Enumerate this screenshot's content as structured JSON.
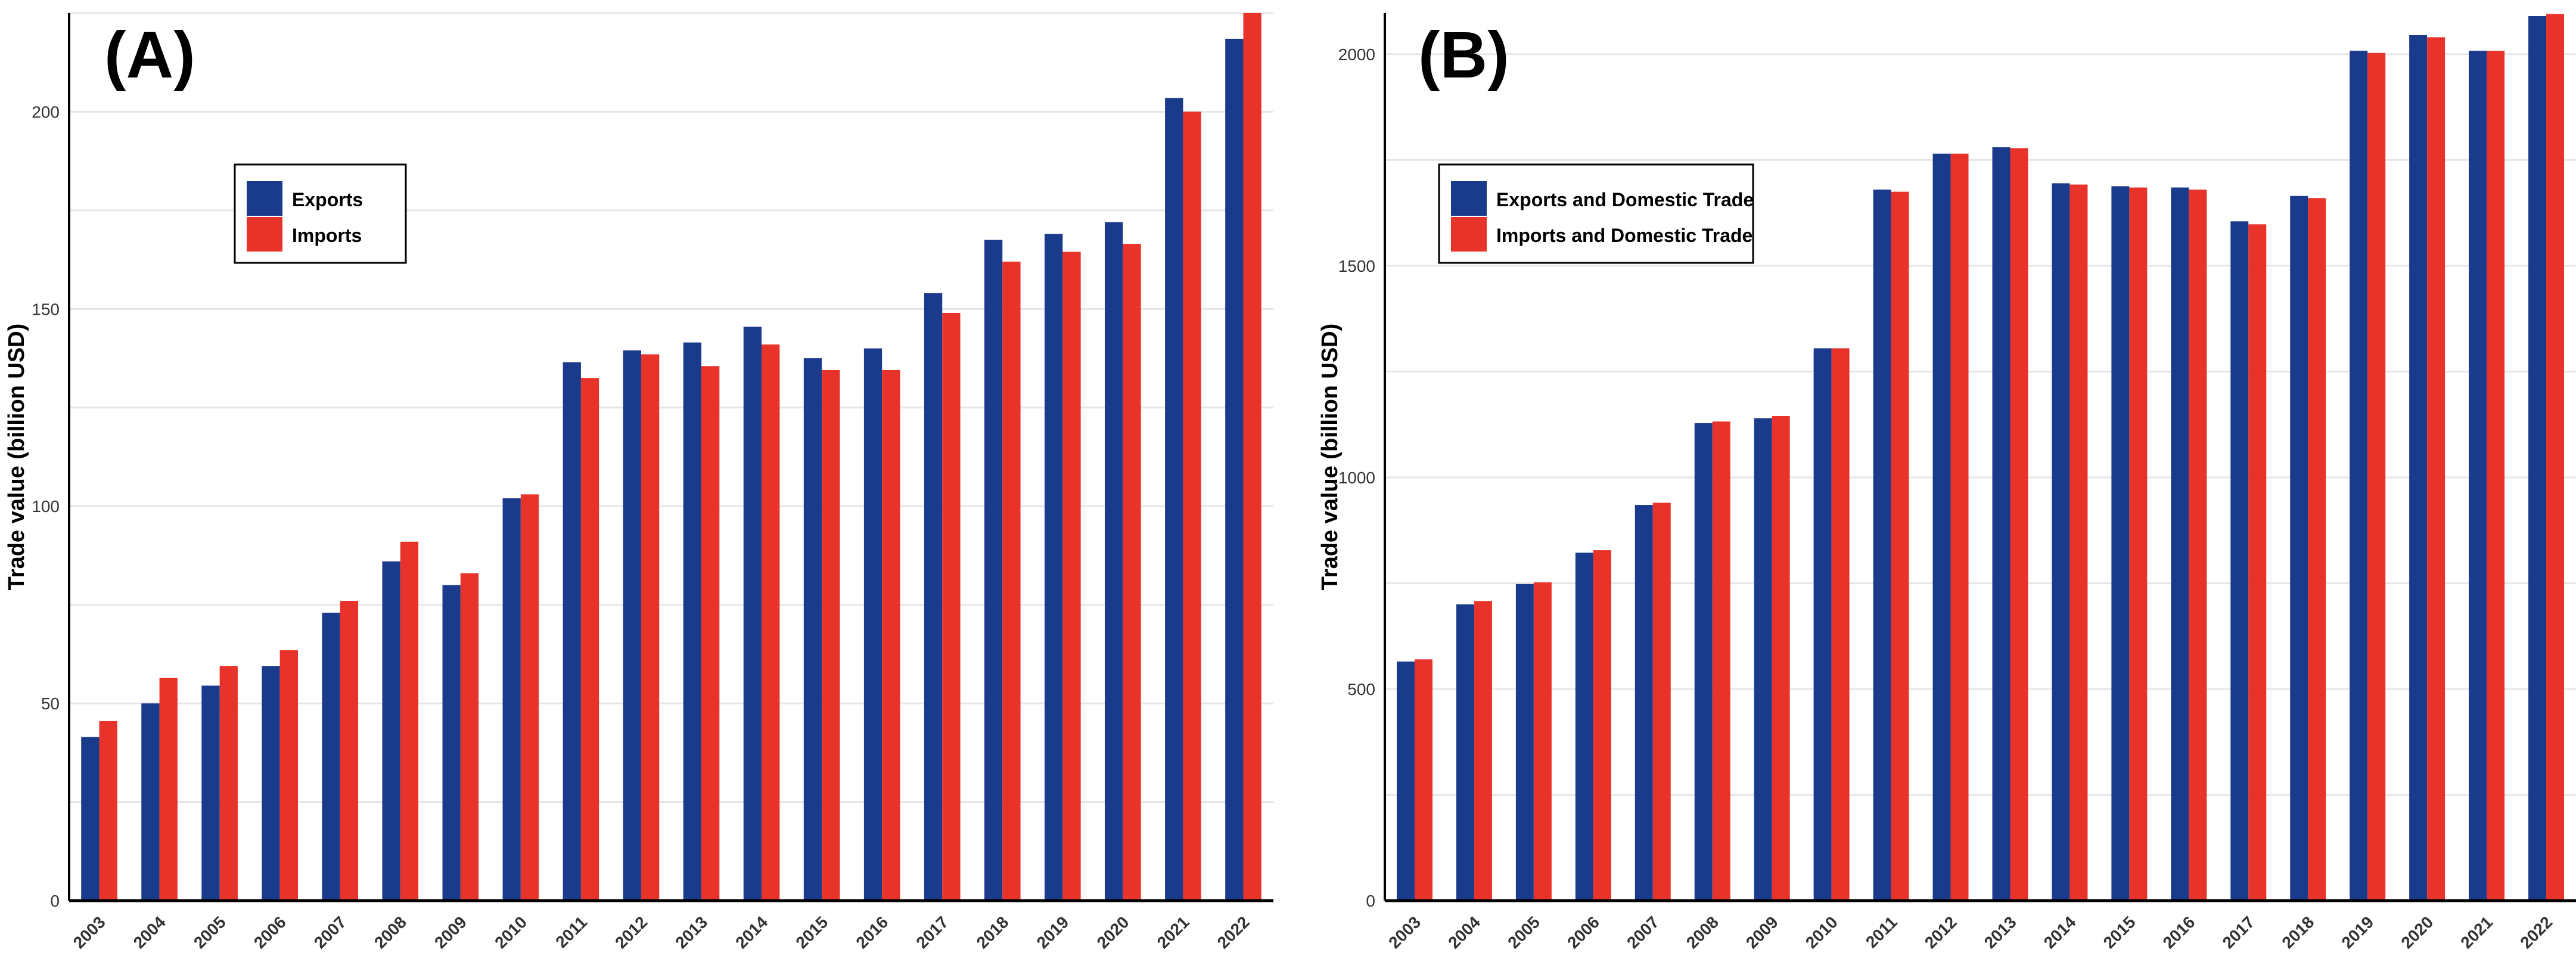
{
  "chart_data": [
    {
      "type": "bar",
      "panel_label": "(A)",
      "ylabel": "Trade value (billion USD)",
      "xlabel": "",
      "categories": [
        "2003",
        "2004",
        "2005",
        "2006",
        "2007",
        "2008",
        "2009",
        "2010",
        "2011",
        "2012",
        "2013",
        "2014",
        "2015",
        "2016",
        "2017",
        "2018",
        "2019",
        "2020",
        "2021",
        "2022"
      ],
      "series": [
        {
          "name": "Exports",
          "color": "#1a3a8c",
          "values": [
            41.5,
            50,
            54.5,
            59.5,
            73,
            86,
            80,
            102,
            136.5,
            139.5,
            141.5,
            145.5,
            137.5,
            140,
            154,
            167.5,
            169,
            172,
            203.5,
            218.5
          ]
        },
        {
          "name": "Imports",
          "color": "#e8332a",
          "values": [
            45.5,
            56.5,
            59.5,
            63.5,
            76,
            91,
            83,
            103,
            132.5,
            138.5,
            135.5,
            141,
            134.5,
            134.5,
            149,
            162,
            164.5,
            166.5,
            200,
            226
          ]
        }
      ],
      "yticks": [
        0,
        50,
        100,
        150,
        200
      ],
      "ylim": [
        0,
        225
      ],
      "grid": true,
      "legend_position": "upper-left"
    },
    {
      "type": "bar",
      "panel_label": "(B)",
      "ylabel": "Trade value (billion USD)",
      "xlabel": "",
      "categories": [
        "2003",
        "2004",
        "2005",
        "2006",
        "2007",
        "2008",
        "2009",
        "2010",
        "2011",
        "2012",
        "2013",
        "2014",
        "2015",
        "2016",
        "2017",
        "2018",
        "2019",
        "2020",
        "2021",
        "2022"
      ],
      "series": [
        {
          "name": "Exports and Domestic Trade",
          "color": "#1a3a8c",
          "values": [
            565,
            700,
            748,
            822,
            935,
            1128,
            1140,
            1305,
            1680,
            1765,
            1780,
            1695,
            1688,
            1685,
            1605,
            1665,
            2008,
            2045,
            2008,
            2090
          ]
        },
        {
          "name": "Imports and Domestic Trade",
          "color": "#e8332a",
          "values": [
            570,
            708,
            752,
            828,
            940,
            1132,
            1145,
            1305,
            1675,
            1765,
            1778,
            1692,
            1685,
            1680,
            1598,
            1660,
            2003,
            2040,
            2008,
            2095
          ]
        }
      ],
      "yticks": [
        0,
        500,
        1000,
        1500,
        2000
      ],
      "ylim": [
        0,
        2097
      ],
      "grid": true,
      "legend_position": "upper-left"
    }
  ]
}
